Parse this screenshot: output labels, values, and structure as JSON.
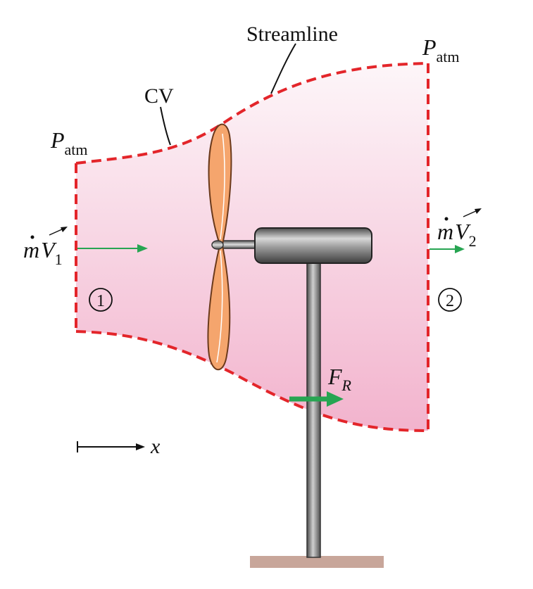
{
  "labels": {
    "streamline": "Streamline",
    "cv": "CV",
    "p_letter": "P",
    "p_sub": "atm",
    "m_dot": "m",
    "v_letter": "V",
    "inlet_sub": "1",
    "outlet_sub": "2",
    "section_1": "1",
    "section_2": "2",
    "force_letter": "F",
    "force_sub": "R",
    "x_axis": "x"
  },
  "colors": {
    "cv_boundary": "#e3252a",
    "cv_fill_top": "#fbf1f6",
    "cv_fill_bottom": "#f2b5cf",
    "flow_arrow": "#27a552",
    "blade": "#f5a56d",
    "blade_edge": "#6b3a1c",
    "housing": "#7a7a7a",
    "ground": "#c8a69a"
  },
  "icons": {
    "section_markers": "circled-number",
    "turbine": "wind-turbine"
  }
}
